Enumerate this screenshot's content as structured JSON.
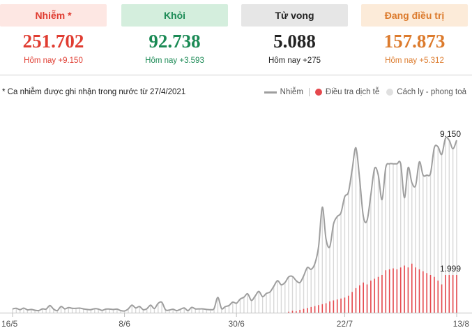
{
  "stats": [
    {
      "label": "Nhiễm *",
      "value": "251.702",
      "today": "Hôm nay +9.150",
      "color": "#e03c31",
      "bg": "#fde7e3"
    },
    {
      "label": "Khỏi",
      "value": "92.738",
      "today": "Hôm nay +3.593",
      "color": "#1b8a55",
      "bg": "#d4eedd"
    },
    {
      "label": "Tử vong",
      "value": "5.088",
      "today": "Hôm nay +275",
      "color": "#222222",
      "bg": "#e6e6e6"
    },
    {
      "label": "Đang điều trị",
      "value": "157.873",
      "today": "Hôm nay +5.312",
      "color": "#dc7b2d",
      "bg": "#fcebd9"
    }
  ],
  "note": "* Ca nhiễm được ghi nhận trong nước từ 27/4/2021",
  "legend": {
    "infected": "Nhiễm",
    "investigation": "Điều tra dịch tễ",
    "isolation": "Cách ly - phong toả"
  },
  "colors": {
    "line": "#9e9e9e",
    "investigation": "#e5484d",
    "isolation": "#e0e0e0",
    "bar": "#d8d8d8"
  },
  "chart_data": {
    "type": "area",
    "start_date": "16/5",
    "x_ticks": [
      "16/5",
      "8/6",
      "30/6",
      "22/7",
      "13/8"
    ],
    "ylim": [
      0,
      10000
    ],
    "annotations": [
      {
        "label": "9.150",
        "x": "13/8",
        "y": 9150
      },
      {
        "label": "1.999",
        "x": "13/8",
        "y": 1999
      }
    ],
    "series": [
      {
        "name": "Nhiễm",
        "values": [
          200,
          230,
          160,
          240,
          150,
          170,
          130,
          110,
          200,
          190,
          380,
          190,
          110,
          330,
          200,
          270,
          230,
          230,
          240,
          200,
          170,
          160,
          210,
          190,
          120,
          190,
          190,
          170,
          190,
          110,
          90,
          200,
          400,
          250,
          330,
          160,
          210,
          400,
          220,
          490,
          550,
          150,
          140,
          180,
          110,
          180,
          250,
          110,
          280,
          200,
          200,
          200,
          170,
          160,
          220,
          810,
          220,
          320,
          380,
          560,
          500,
          720,
          820,
          1000,
          650,
          880,
          1130,
          850,
          1020,
          1100,
          1400,
          1700,
          1480,
          1600,
          1900,
          1920,
          1700,
          1600,
          1950,
          2400,
          2300,
          2600,
          3500,
          5600,
          3900,
          3500,
          4700,
          5100,
          5300,
          6150,
          6400,
          7600,
          8750,
          7100,
          5100,
          4900,
          6250,
          7650,
          7300,
          6000,
          7700,
          7900,
          7900,
          7900,
          7900,
          6100,
          7700,
          6900,
          6750,
          8000,
          7300,
          7300,
          7400,
          8750,
          8800,
          8400,
          9250,
          9150,
          8700,
          9150
        ]
      },
      {
        "name": "Điều tra dịch tễ",
        "values": [
          0,
          0,
          0,
          0,
          0,
          0,
          0,
          0,
          0,
          0,
          0,
          0,
          0,
          0,
          0,
          0,
          0,
          0,
          0,
          0,
          0,
          0,
          0,
          0,
          0,
          0,
          0,
          0,
          0,
          0,
          0,
          0,
          0,
          0,
          0,
          0,
          0,
          0,
          0,
          0,
          0,
          0,
          0,
          0,
          0,
          0,
          0,
          0,
          0,
          0,
          0,
          0,
          0,
          0,
          0,
          0,
          0,
          0,
          0,
          0,
          0,
          0,
          0,
          0,
          0,
          0,
          0,
          0,
          0,
          0,
          0,
          0,
          0,
          0,
          50,
          100,
          80,
          150,
          200,
          250,
          300,
          350,
          400,
          450,
          500,
          600,
          650,
          700,
          750,
          800,
          900,
          1100,
          1300,
          1450,
          1600,
          1500,
          1700,
          1800,
          1900,
          2000,
          2250,
          2300,
          2350,
          2300,
          2400,
          2500,
          2400,
          2600,
          2400,
          2300,
          2200,
          2100,
          2000,
          1900,
          1700,
          1500,
          1999,
          1999,
          1999,
          1999
        ]
      }
    ]
  }
}
